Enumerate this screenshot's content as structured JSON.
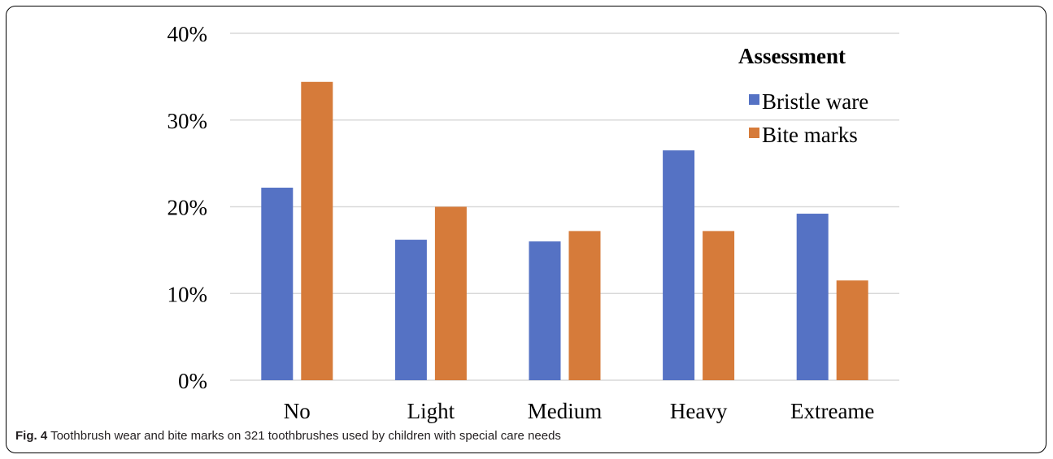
{
  "chart_data": {
    "type": "bar",
    "categories": [
      "No",
      "Light",
      "Medium",
      "Heavy",
      "Extreame"
    ],
    "series": [
      {
        "name": "Bristle ware",
        "values": [
          22.2,
          16.2,
          16.0,
          26.5,
          19.2
        ],
        "color": "#5572c4"
      },
      {
        "name": "Bite marks",
        "values": [
          34.4,
          20.0,
          17.2,
          17.2,
          11.5
        ],
        "color": "#d67b3a"
      }
    ],
    "yticks": [
      "0%",
      "10%",
      "20%",
      "30%",
      "40%"
    ],
    "ylim": [
      0,
      40
    ],
    "grid": true,
    "legend_title": "Assessment",
    "legend_position": "top-right"
  },
  "caption": {
    "label": "Fig. 4",
    "text": " Toothbrush wear and bite marks on 321 toothbrushes used by children with special care needs"
  }
}
